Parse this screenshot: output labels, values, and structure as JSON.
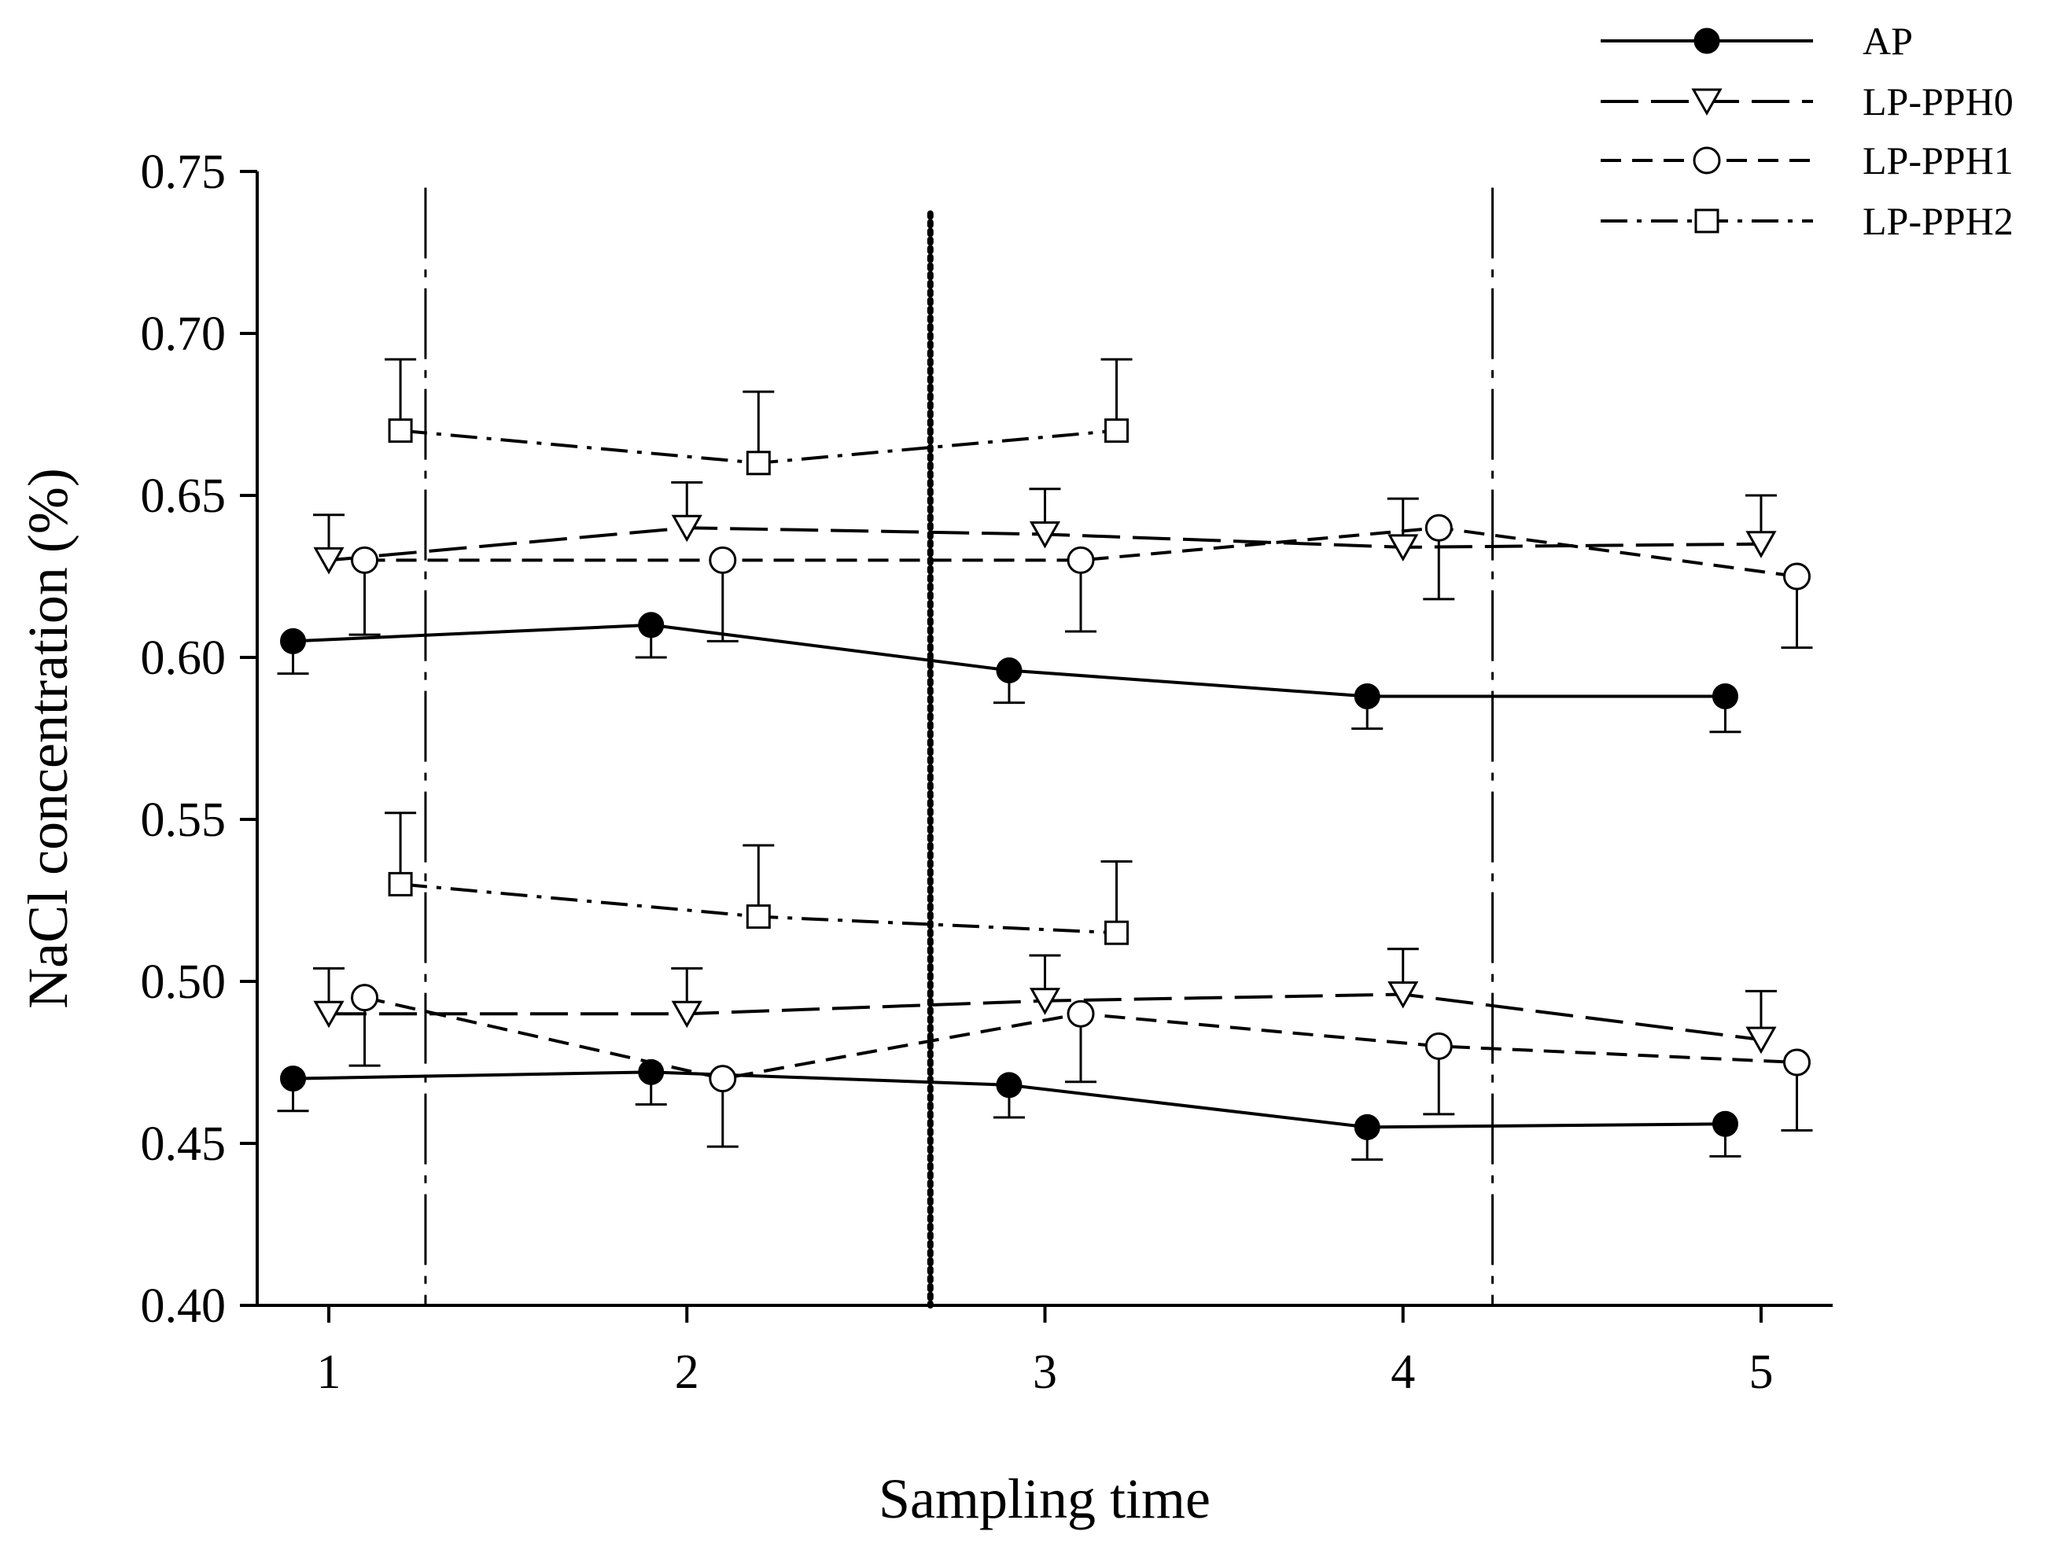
{
  "chart_data": {
    "type": "line",
    "title": "",
    "xlabel": "Sampling time",
    "ylabel": "NaCl concentration (%)",
    "xlim": [
      0.8,
      5.2
    ],
    "ylim": [
      0.4,
      0.75
    ],
    "x_ticks": [
      "1",
      "2",
      "3",
      "4",
      "5"
    ],
    "y_ticks": [
      "0.40",
      "0.45",
      "0.50",
      "0.55",
      "0.60",
      "0.65",
      "0.70",
      "0.75"
    ],
    "grid": false,
    "legend_position": "top-right",
    "series": [
      {
        "name": "AP",
        "group": "upper",
        "marker": "filled-circle",
        "line": "solid",
        "points": [
          [
            0.9,
            0.605,
            0.01
          ],
          [
            1.9,
            0.61,
            0.01
          ],
          [
            2.9,
            0.596,
            0.01
          ],
          [
            3.9,
            0.588,
            0.01
          ],
          [
            4.9,
            0.588,
            0.011
          ]
        ],
        "error_direction": "down"
      },
      {
        "name": "LP-PPH0",
        "group": "upper",
        "marker": "open-triangle-down",
        "line": "long-dash",
        "points": [
          [
            1.0,
            0.63,
            0.014
          ],
          [
            2.0,
            0.64,
            0.014
          ],
          [
            3.0,
            0.638,
            0.014
          ],
          [
            4.0,
            0.634,
            0.015
          ],
          [
            5.0,
            0.635,
            0.015
          ]
        ],
        "error_direction": "up"
      },
      {
        "name": "LP-PPH1",
        "group": "upper",
        "marker": "open-circle",
        "line": "short-dash",
        "points": [
          [
            1.1,
            0.63,
            0.023
          ],
          [
            2.1,
            0.63,
            0.025
          ],
          [
            3.1,
            0.63,
            0.022
          ],
          [
            4.1,
            0.64,
            0.022
          ],
          [
            5.1,
            0.625,
            0.022
          ]
        ],
        "error_direction": "down"
      },
      {
        "name": "LP-PPH2",
        "group": "upper",
        "marker": "open-square",
        "line": "dash-dot",
        "points": [
          [
            1.2,
            0.67,
            0.022
          ],
          [
            2.2,
            0.66,
            0.022
          ],
          [
            3.2,
            0.67,
            0.022
          ]
        ],
        "error_direction": "up"
      },
      {
        "name": "AP",
        "group": "lower",
        "marker": "filled-circle",
        "line": "solid",
        "points": [
          [
            0.9,
            0.47,
            0.01
          ],
          [
            1.9,
            0.472,
            0.01
          ],
          [
            2.9,
            0.468,
            0.01
          ],
          [
            3.9,
            0.455,
            0.01
          ],
          [
            4.9,
            0.456,
            0.01
          ]
        ],
        "error_direction": "down"
      },
      {
        "name": "LP-PPH0",
        "group": "lower",
        "marker": "open-triangle-down",
        "line": "long-dash",
        "points": [
          [
            1.0,
            0.49,
            0.014
          ],
          [
            2.0,
            0.49,
            0.014
          ],
          [
            3.0,
            0.494,
            0.014
          ],
          [
            4.0,
            0.496,
            0.014
          ],
          [
            5.0,
            0.482,
            0.015
          ]
        ],
        "error_direction": "up"
      },
      {
        "name": "LP-PPH1",
        "group": "lower",
        "marker": "open-circle",
        "line": "short-dash",
        "points": [
          [
            1.1,
            0.495,
            0.021
          ],
          [
            2.1,
            0.47,
            0.021
          ],
          [
            3.1,
            0.49,
            0.021
          ],
          [
            4.1,
            0.48,
            0.021
          ],
          [
            5.1,
            0.475,
            0.021
          ]
        ],
        "error_direction": "down"
      },
      {
        "name": "LP-PPH2",
        "group": "lower",
        "marker": "open-square",
        "line": "dash-dot",
        "points": [
          [
            1.2,
            0.53,
            0.022
          ],
          [
            2.2,
            0.52,
            0.022
          ],
          [
            3.2,
            0.515,
            0.022
          ]
        ],
        "error_direction": "up"
      }
    ],
    "vertical_lines": [
      {
        "x": 1.27,
        "style": "dash-dot"
      },
      {
        "x": 2.68,
        "style": "dotted"
      },
      {
        "x": 4.25,
        "style": "dash-dot"
      }
    ],
    "legend": [
      {
        "label": "AP",
        "marker": "filled-circle",
        "line": "solid"
      },
      {
        "label": "LP-PPH0",
        "marker": "open-triangle-down",
        "line": "long-dash"
      },
      {
        "label": "LP-PPH1",
        "marker": "open-circle",
        "line": "short-dash"
      },
      {
        "label": "LP-PPH2",
        "marker": "open-square",
        "line": "dash-dot"
      }
    ]
  }
}
